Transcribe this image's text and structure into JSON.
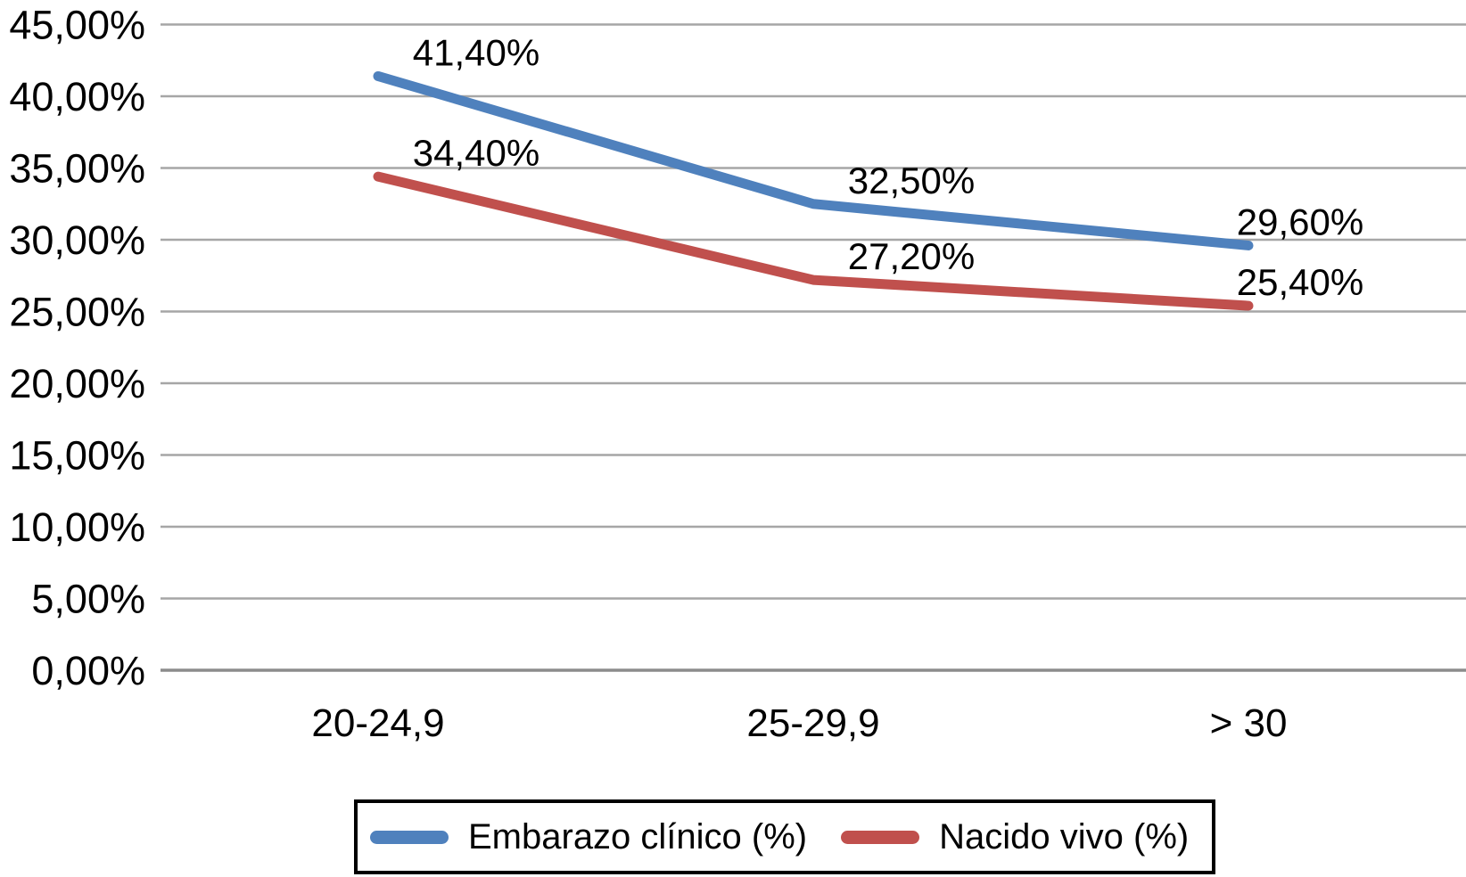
{
  "chart_data": {
    "type": "line",
    "title": "",
    "xlabel": "",
    "ylabel": "",
    "categories": [
      "20-24,9",
      "25-29,9",
      "> 30"
    ],
    "series": [
      {
        "name": "Embarazo clínico (%)",
        "values": [
          41.4,
          32.5,
          29.6
        ],
        "point_labels": [
          "41,40%",
          "32,50%",
          "29,60%"
        ],
        "color": "#4F81BD"
      },
      {
        "name": "Nacido vivo (%)",
        "values": [
          34.4,
          27.2,
          25.4
        ],
        "point_labels": [
          "34,40%",
          "27,20%",
          "25,40%"
        ],
        "color": "#C0504D"
      }
    ],
    "ylim": [
      0,
      45
    ],
    "ytick_step": 5,
    "ytick_labels": [
      "0,00%",
      "5,00%",
      "10,00%",
      "15,00%",
      "20,00%",
      "25,00%",
      "30,00%",
      "35,00%",
      "40,00%",
      "45,00%"
    ],
    "grid": true,
    "legend_position": "bottom"
  },
  "colors": {
    "gridline": "#A6A6A6",
    "axis_line": "#8C8C8C",
    "text": "#000000",
    "legend_border": "#000000",
    "background": "#FFFFFF"
  }
}
